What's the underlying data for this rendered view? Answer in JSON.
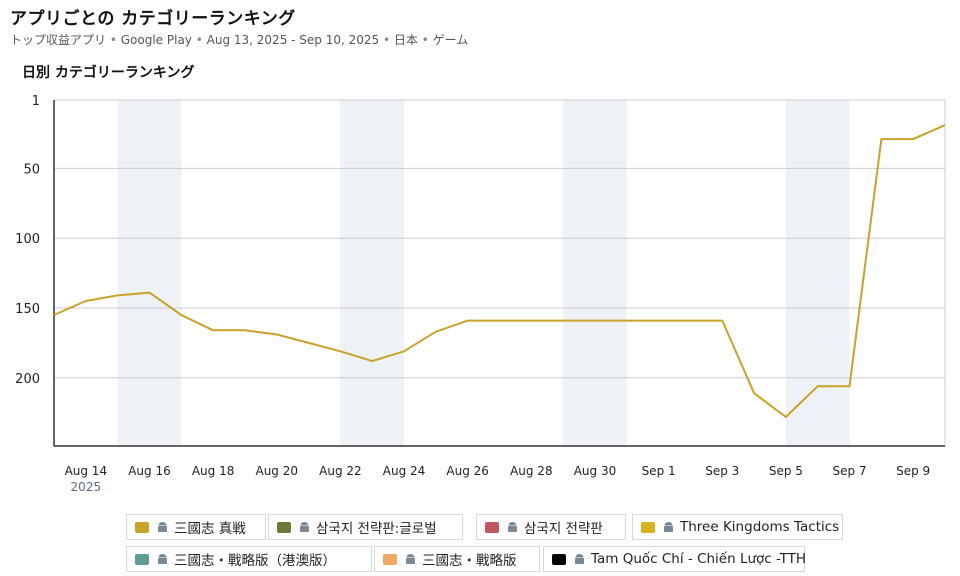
{
  "header": {
    "title": "アプリごとの カテゴリーランキング",
    "subtitle_parts": [
      "トップ収益アプリ",
      "Google Play",
      "Aug 13, 2025 - Sep 10, 2025",
      "日本",
      "ゲーム"
    ],
    "separator": "•"
  },
  "chart_title": "日別 カテゴリーランキング",
  "chart_data": {
    "type": "line",
    "y_reversed": true,
    "ylim": [
      1,
      250
    ],
    "yticks": [
      1,
      50,
      100,
      150,
      200
    ],
    "x_tick_labels": [
      "Aug 14",
      "Aug 16",
      "Aug 18",
      "Aug 20",
      "Aug 22",
      "Aug 24",
      "Aug 26",
      "Aug 28",
      "Aug 30",
      "Sep 1",
      "Sep 3",
      "Sep 5",
      "Sep 7",
      "Sep 9"
    ],
    "year_label": "2025",
    "x": [
      "Aug 13",
      "Aug 14",
      "Aug 15",
      "Aug 16",
      "Aug 17",
      "Aug 18",
      "Aug 19",
      "Aug 20",
      "Aug 21",
      "Aug 22",
      "Aug 23",
      "Aug 24",
      "Aug 25",
      "Aug 26",
      "Aug 27",
      "Aug 28",
      "Aug 29",
      "Aug 30",
      "Aug 31",
      "Sep 1",
      "Sep 2",
      "Sep 3",
      "Sep 4",
      "Sep 5",
      "Sep 6",
      "Sep 7",
      "Sep 8",
      "Sep 9",
      "Sep 10"
    ],
    "weekend_bands": [
      [
        "Aug 15",
        "Aug 17"
      ],
      [
        "Aug 22",
        "Aug 24"
      ],
      [
        "Aug 29",
        "Aug 31"
      ],
      [
        "Sep 5",
        "Sep 7"
      ]
    ],
    "series": [
      {
        "name": "三國志 真戦",
        "color": "#c9a227",
        "values": [
          155,
          145,
          141,
          139,
          155,
          166,
          166,
          169,
          175,
          181,
          188,
          181,
          167,
          159,
          159,
          159,
          159,
          159,
          159,
          159,
          159,
          159,
          211,
          228,
          206,
          206,
          29,
          29,
          19
        ]
      }
    ],
    "grid": true
  },
  "legend": {
    "items": [
      {
        "label": "三國志 真戦",
        "color": "#c9a227"
      },
      {
        "label": "삼국지 전략판:글로벌",
        "color": "#6b7a3a"
      },
      {
        "label": "삼국지 전략판",
        "color": "#c0575e"
      },
      {
        "label": "Three Kingdoms Tactics",
        "color": "#d8b21c"
      },
      {
        "label": "三國志・戰略版（港澳版）",
        "color": "#5e9a96"
      },
      {
        "label": "三國志・戰略版",
        "color": "#f0a860"
      },
      {
        "label": "Tam Quốc Chí - Chiến Lược -TTH",
        "color": "#000000"
      }
    ],
    "icon": "android-icon"
  }
}
